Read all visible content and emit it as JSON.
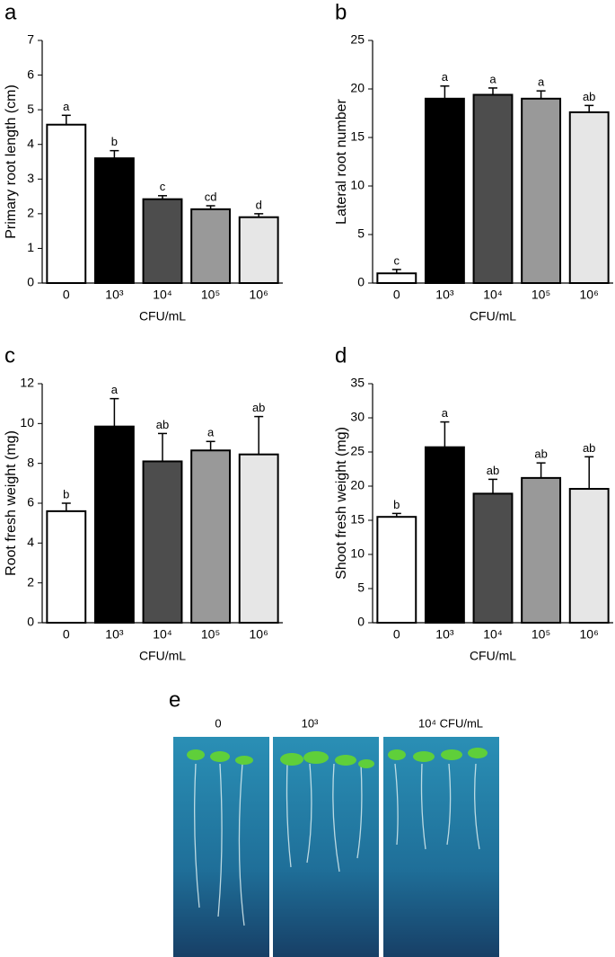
{
  "chart_data": [
    {
      "type": "bar",
      "panel": "a",
      "ylabel": "Primary root length (cm)",
      "xlabel": "CFU/mL",
      "categories": [
        "0",
        "10³",
        "10⁴",
        "10⁵",
        "10⁶"
      ],
      "values": [
        4.57,
        3.6,
        2.42,
        2.13,
        1.9
      ],
      "errors": [
        0.27,
        0.22,
        0.1,
        0.1,
        0.1
      ],
      "annotations": [
        "a",
        "b",
        "c",
        "cd",
        "d"
      ],
      "colors": [
        "#ffffff",
        "#000000",
        "#4d4d4d",
        "#999999",
        "#e6e6e6"
      ],
      "ylim": [
        0,
        7
      ],
      "yticks": [
        0,
        1,
        2,
        3,
        4,
        5,
        6,
        7
      ]
    },
    {
      "type": "bar",
      "panel": "b",
      "ylabel": "Lateral root number",
      "xlabel": "CFU/mL",
      "categories": [
        "0",
        "10³",
        "10⁴",
        "10⁵",
        "10⁶"
      ],
      "values": [
        1.0,
        19.0,
        19.4,
        19.0,
        17.6
      ],
      "errors": [
        0.4,
        1.3,
        0.7,
        0.8,
        0.7
      ],
      "annotations": [
        "c",
        "a",
        "a",
        "a",
        "ab"
      ],
      "colors": [
        "#ffffff",
        "#000000",
        "#4d4d4d",
        "#999999",
        "#e6e6e6"
      ],
      "ylim": [
        0,
        25
      ],
      "yticks": [
        0,
        5,
        10,
        15,
        20,
        25
      ]
    },
    {
      "type": "bar",
      "panel": "c",
      "ylabel": "Root fresh weight (mg)",
      "xlabel": "CFU/mL",
      "categories": [
        "0",
        "10³",
        "10⁴",
        "10⁵",
        "10⁶"
      ],
      "values": [
        5.6,
        9.85,
        8.1,
        8.65,
        8.45
      ],
      "errors": [
        0.4,
        1.4,
        1.4,
        0.45,
        1.9
      ],
      "annotations": [
        "b",
        "a",
        "ab",
        "a",
        "ab"
      ],
      "colors": [
        "#ffffff",
        "#000000",
        "#4d4d4d",
        "#999999",
        "#e6e6e6"
      ],
      "ylim": [
        0,
        12
      ],
      "yticks": [
        0,
        2,
        4,
        6,
        8,
        10,
        12
      ]
    },
    {
      "type": "bar",
      "panel": "d",
      "ylabel": "Shoot fresh weight (mg)",
      "xlabel": "CFU/mL",
      "categories": [
        "0",
        "10³",
        "10⁴",
        "10⁵",
        "10⁶"
      ],
      "values": [
        15.5,
        25.7,
        18.9,
        21.2,
        19.6
      ],
      "errors": [
        0.5,
        3.7,
        2.1,
        2.2,
        4.7
      ],
      "annotations": [
        "b",
        "a",
        "ab",
        "ab",
        "ab"
      ],
      "colors": [
        "#ffffff",
        "#000000",
        "#4d4d4d",
        "#999999",
        "#e6e6e6"
      ],
      "ylim": [
        0,
        35
      ],
      "yticks": [
        0,
        5,
        10,
        15,
        20,
        25,
        30,
        35
      ]
    }
  ],
  "panel_e": {
    "panel": "e",
    "labels": [
      "0",
      "10³",
      "10⁴ CFU/mL"
    ]
  }
}
